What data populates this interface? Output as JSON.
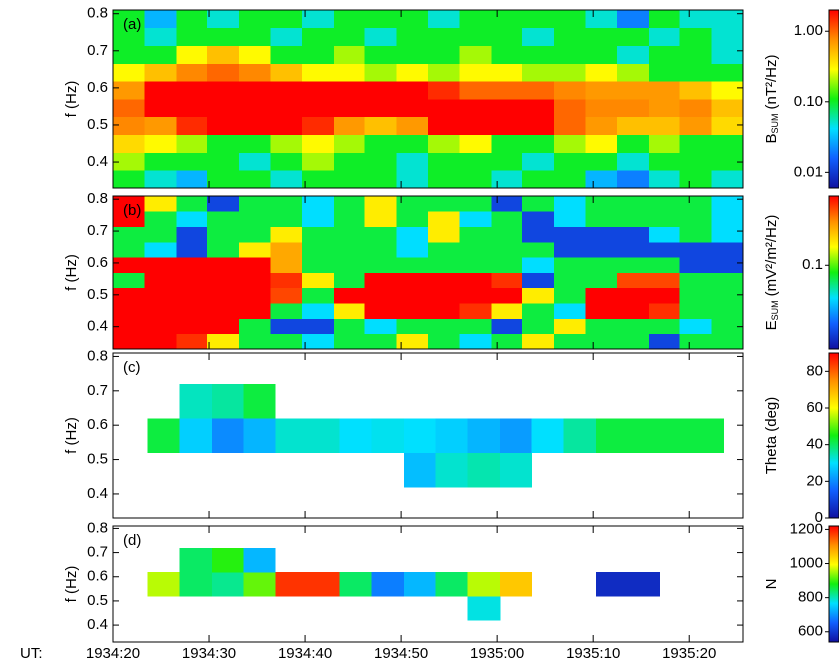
{
  "chart_data": [
    {
      "type": "heatmap",
      "panel_label": "(a)",
      "y_label": "f (Hz)",
      "xlim": [
        20,
        85.6
      ],
      "ylim": [
        0.33,
        0.81
      ],
      "yticks": [
        0.4,
        0.5,
        0.6,
        0.7,
        0.8
      ],
      "xticks": [
        20,
        30,
        40,
        50,
        60,
        70,
        80
      ],
      "xbins": [
        20,
        23.3,
        26.6,
        29.8,
        33.1,
        36.4,
        39.7,
        43,
        46.2,
        49.5,
        52.8,
        56.1,
        59.4,
        62.6,
        65.9,
        69.2,
        72.5,
        75.8,
        79,
        82.3,
        85.6
      ],
      "ybins": [
        0.33,
        0.378,
        0.426,
        0.474,
        0.522,
        0.57,
        0.618,
        0.666,
        0.714,
        0.762,
        0.81
      ],
      "z": [
        [
          0.1,
          0.05,
          0.03,
          0.1,
          0.1,
          0.05,
          0.1,
          0.1,
          0.1,
          0.05,
          0.1,
          0.1,
          0.05,
          0.1,
          0.1,
          0.03,
          0.02,
          0.05,
          0.1,
          0.05
        ],
        [
          0.2,
          0.1,
          0.1,
          0.1,
          0.05,
          0.1,
          0.2,
          0.1,
          0.1,
          0.05,
          0.1,
          0.1,
          0.1,
          0.05,
          0.1,
          0.1,
          0.05,
          0.1,
          0.1,
          0.1
        ],
        [
          0.4,
          0.3,
          0.2,
          0.1,
          0.1,
          0.2,
          0.3,
          0.2,
          0.1,
          0.1,
          0.2,
          0.3,
          0.1,
          0.1,
          0.2,
          0.3,
          0.1,
          0.2,
          0.1,
          0.1
        ],
        [
          0.8,
          0.7,
          1.5,
          2,
          2,
          2,
          1.5,
          0.7,
          0.5,
          0.7,
          2,
          2,
          2,
          2,
          1,
          0.7,
          0.5,
          0.5,
          0.7,
          0.4
        ],
        [
          1,
          2,
          3,
          3,
          3,
          3,
          3,
          3,
          3,
          3,
          3,
          3,
          3,
          2,
          1,
          0.8,
          0.8,
          0.7,
          0.8,
          0.5
        ],
        [
          0.7,
          2,
          3,
          3,
          3,
          3,
          3,
          2,
          2,
          2,
          1.5,
          1,
          1,
          1,
          0.8,
          0.7,
          0.7,
          0.7,
          0.5,
          0.3
        ],
        [
          0.3,
          0.5,
          0.8,
          1,
          0.8,
          0.5,
          0.3,
          0.3,
          0.2,
          0.3,
          0.2,
          0.3,
          0.3,
          0.2,
          0.2,
          0.3,
          0.2,
          0.1,
          0.1,
          0.1
        ],
        [
          0.1,
          0.1,
          0.3,
          0.5,
          0.3,
          0.1,
          0.1,
          0.2,
          0.1,
          0.1,
          0.1,
          0.2,
          0.1,
          0.1,
          0.1,
          0.1,
          0.05,
          0.1,
          0.1,
          0.05
        ],
        [
          0.1,
          0.05,
          0.1,
          0.1,
          0.1,
          0.05,
          0.1,
          0.1,
          0.05,
          0.1,
          0.1,
          0.1,
          0.1,
          0.05,
          0.1,
          0.1,
          0.1,
          0.05,
          0.1,
          0.05
        ],
        [
          0.1,
          0.03,
          0.1,
          0.05,
          0.1,
          0.1,
          0.05,
          0.1,
          0.1,
          0.1,
          0.05,
          0.1,
          0.1,
          0.1,
          0.1,
          0.05,
          0.02,
          0.1,
          0.05,
          0.05
        ]
      ],
      "colorbar": {
        "label": {
          "main": "B",
          "sub": "SUM",
          "unit": "(nT²/Hz)"
        },
        "scale": "log",
        "lim": [
          0.006,
          2
        ],
        "ticks": [
          {
            "value": 0.01,
            "label": "0.01"
          },
          {
            "value": 0.1,
            "label": "0.10"
          },
          {
            "value": 1,
            "label": "1.00"
          }
        ],
        "colors": [
          "#1010a0",
          "#1060ff",
          "#00e0ff",
          "#10f010",
          "#ffff00",
          "#ff9000",
          "#ff0000"
        ]
      }
    },
    {
      "type": "heatmap",
      "panel_label": "(b)",
      "y_label": "f (Hz)",
      "xlim": [
        20,
        85.6
      ],
      "ylim": [
        0.33,
        0.81
      ],
      "yticks": [
        0.4,
        0.5,
        0.6,
        0.7,
        0.8
      ],
      "xticks": [
        20,
        30,
        40,
        50,
        60,
        70,
        80
      ],
      "xbins": [
        20,
        23.3,
        26.6,
        29.8,
        33.1,
        36.4,
        39.7,
        43,
        46.2,
        49.5,
        52.8,
        56.1,
        59.4,
        62.6,
        65.9,
        69.2,
        72.5,
        75.8,
        79,
        82.3,
        85.6
      ],
      "ybins": [
        0.33,
        0.378,
        0.426,
        0.474,
        0.522,
        0.57,
        0.618,
        0.666,
        0.714,
        0.762,
        0.81
      ],
      "z": [
        [
          0.35,
          0.35,
          0.3,
          0.15,
          0.08,
          0.08,
          0.055,
          0.08,
          0.08,
          0.15,
          0.08,
          0.055,
          0.08,
          0.15,
          0.08,
          0.08,
          0.08,
          0.03,
          0.08,
          0.08
        ],
        [
          0.35,
          0.35,
          0.35,
          0.35,
          0.08,
          0.03,
          0.03,
          0.08,
          0.055,
          0.08,
          0.08,
          0.08,
          0.03,
          0.08,
          0.15,
          0.08,
          0.08,
          0.08,
          0.055,
          0.08
        ],
        [
          0.35,
          0.35,
          0.35,
          0.35,
          0.35,
          0.08,
          0.055,
          0.15,
          0.35,
          0.35,
          0.35,
          0.3,
          0.15,
          0.08,
          0.055,
          0.35,
          0.35,
          0.3,
          0.08,
          0.08
        ],
        [
          0.35,
          0.35,
          0.35,
          0.35,
          0.35,
          0.28,
          0.08,
          0.35,
          0.35,
          0.35,
          0.35,
          0.35,
          0.35,
          0.15,
          0.08,
          0.35,
          0.35,
          0.35,
          0.08,
          0.08
        ],
        [
          0.08,
          0.35,
          0.35,
          0.35,
          0.35,
          0.3,
          0.15,
          0.08,
          0.35,
          0.35,
          0.35,
          0.35,
          0.3,
          0.03,
          0.08,
          0.08,
          0.28,
          0.28,
          0.08,
          0.08
        ],
        [
          0.35,
          0.35,
          0.35,
          0.35,
          0.35,
          0.2,
          0.08,
          0.08,
          0.08,
          0.08,
          0.08,
          0.08,
          0.08,
          0.055,
          0.08,
          0.08,
          0.08,
          0.08,
          0.03,
          0.03
        ],
        [
          0.08,
          0.055,
          0.03,
          0.08,
          0.15,
          0.2,
          0.08,
          0.08,
          0.08,
          0.055,
          0.08,
          0.08,
          0.08,
          0.08,
          0.03,
          0.03,
          0.03,
          0.03,
          0.03,
          0.03
        ],
        [
          0.08,
          0.08,
          0.03,
          0.08,
          0.08,
          0.15,
          0.08,
          0.08,
          0.08,
          0.055,
          0.15,
          0.08,
          0.08,
          0.03,
          0.03,
          0.03,
          0.03,
          0.055,
          0.08,
          0.055
        ],
        [
          0.35,
          0.08,
          0.055,
          0.08,
          0.08,
          0.08,
          0.055,
          0.08,
          0.15,
          0.08,
          0.15,
          0.055,
          0.08,
          0.03,
          0.055,
          0.08,
          0.08,
          0.08,
          0.08,
          0.055
        ],
        [
          0.35,
          0.15,
          0.08,
          0.03,
          0.08,
          0.08,
          0.055,
          0.08,
          0.15,
          0.08,
          0.08,
          0.08,
          0.03,
          0.08,
          0.055,
          0.08,
          0.08,
          0.08,
          0.08,
          0.055
        ]
      ],
      "colorbar": {
        "label": {
          "main": "E",
          "sub": "SUM",
          "unit": "(mV²/m²/Hz)"
        },
        "scale": "log",
        "lim": [
          0.022,
          0.35
        ],
        "ticks": [
          0.1
        ],
        "colors": [
          "#1010a0",
          "#1060ff",
          "#00e0ff",
          "#10f010",
          "#ffff00",
          "#ff9000",
          "#ff0000"
        ]
      }
    },
    {
      "type": "heatmap",
      "panel_label": "(c)",
      "y_label": "f (Hz)",
      "xlim": [
        20,
        85.6
      ],
      "ylim": [
        0.33,
        0.81
      ],
      "yticks": [
        0.4,
        0.5,
        0.6,
        0.7,
        0.8
      ],
      "xticks": [
        20,
        30,
        40,
        50,
        60,
        70,
        80
      ],
      "xbins": [
        23.6,
        26.9,
        30.3,
        33.6,
        36.9,
        40.3,
        43.6,
        46.9,
        50.3,
        53.6,
        56.9,
        60.3,
        63.6,
        66.9,
        70.3,
        73.6,
        76.9,
        80.3,
        83.6
      ],
      "ybins": [
        0.42,
        0.52,
        0.62,
        0.72
      ],
      "z": [
        [
          null,
          null,
          null,
          null,
          null,
          null,
          null,
          null,
          26,
          33,
          35,
          33,
          null,
          null,
          null,
          null,
          null,
          null
        ],
        [
          42,
          28,
          20,
          25,
          33,
          33,
          30,
          31,
          30,
          28,
          25,
          22,
          30,
          36,
          42,
          42,
          42,
          42
        ],
        [
          null,
          34,
          36,
          42,
          null,
          null,
          null,
          null,
          null,
          null,
          null,
          null,
          null,
          null,
          null,
          null,
          null,
          null
        ]
      ],
      "colorbar": {
        "label": {
          "main": "Theta (deg)"
        },
        "scale": "linear",
        "lim": [
          0,
          90
        ],
        "ticks": [
          0,
          20,
          40,
          60,
          80
        ],
        "colors": [
          "#1010a0",
          "#1060ff",
          "#00e0ff",
          "#10f010",
          "#ffff00",
          "#ff9000",
          "#ff0000"
        ]
      }
    },
    {
      "type": "heatmap",
      "panel_label": "(d)",
      "y_label": "f (Hz)",
      "x_label": "UT:",
      "xlim": [
        20,
        85.6
      ],
      "ylim": [
        0.33,
        0.81
      ],
      "yticks": [
        0.4,
        0.5,
        0.6,
        0.7,
        0.8
      ],
      "xticks": [
        {
          "value": 20,
          "label": "1934:20"
        },
        {
          "value": 30,
          "label": "1934:30"
        },
        {
          "value": 40,
          "label": "1934:40"
        },
        {
          "value": 50,
          "label": "1934:50"
        },
        {
          "value": 60,
          "label": "1935:00"
        },
        {
          "value": 70,
          "label": "1935:10"
        },
        {
          "value": 80,
          "label": "1935:20"
        }
      ],
      "xbins": [
        23.6,
        26.9,
        30.3,
        33.6,
        36.9,
        40.3,
        43.6,
        46.9,
        50.3,
        53.6,
        56.9,
        60.3,
        63.6,
        66.9,
        70.3,
        73.6,
        76.9,
        80.3,
        83.6
      ],
      "ybins": [
        0.42,
        0.52,
        0.62,
        0.72
      ],
      "z": [
        [
          null,
          null,
          null,
          null,
          null,
          null,
          null,
          null,
          null,
          null,
          780,
          null,
          null,
          null,
          null,
          null,
          null,
          null
        ],
        [
          960,
          840,
          820,
          920,
          1180,
          1180,
          840,
          680,
          730,
          840,
          960,
          1050,
          null,
          null,
          580,
          580,
          null,
          null
        ],
        [
          null,
          840,
          890,
          730,
          null,
          null,
          null,
          null,
          null,
          null,
          null,
          null,
          null,
          null,
          null,
          null,
          null,
          null
        ]
      ],
      "colorbar": {
        "label": {
          "main": "N"
        },
        "scale": "linear",
        "lim": [
          540,
          1220
        ],
        "ticks": [
          600,
          800,
          1000,
          1200
        ],
        "colors": [
          "#1010a0",
          "#1060ff",
          "#00e0ff",
          "#10f010",
          "#ffff00",
          "#ff9000",
          "#ff0000"
        ]
      }
    }
  ]
}
